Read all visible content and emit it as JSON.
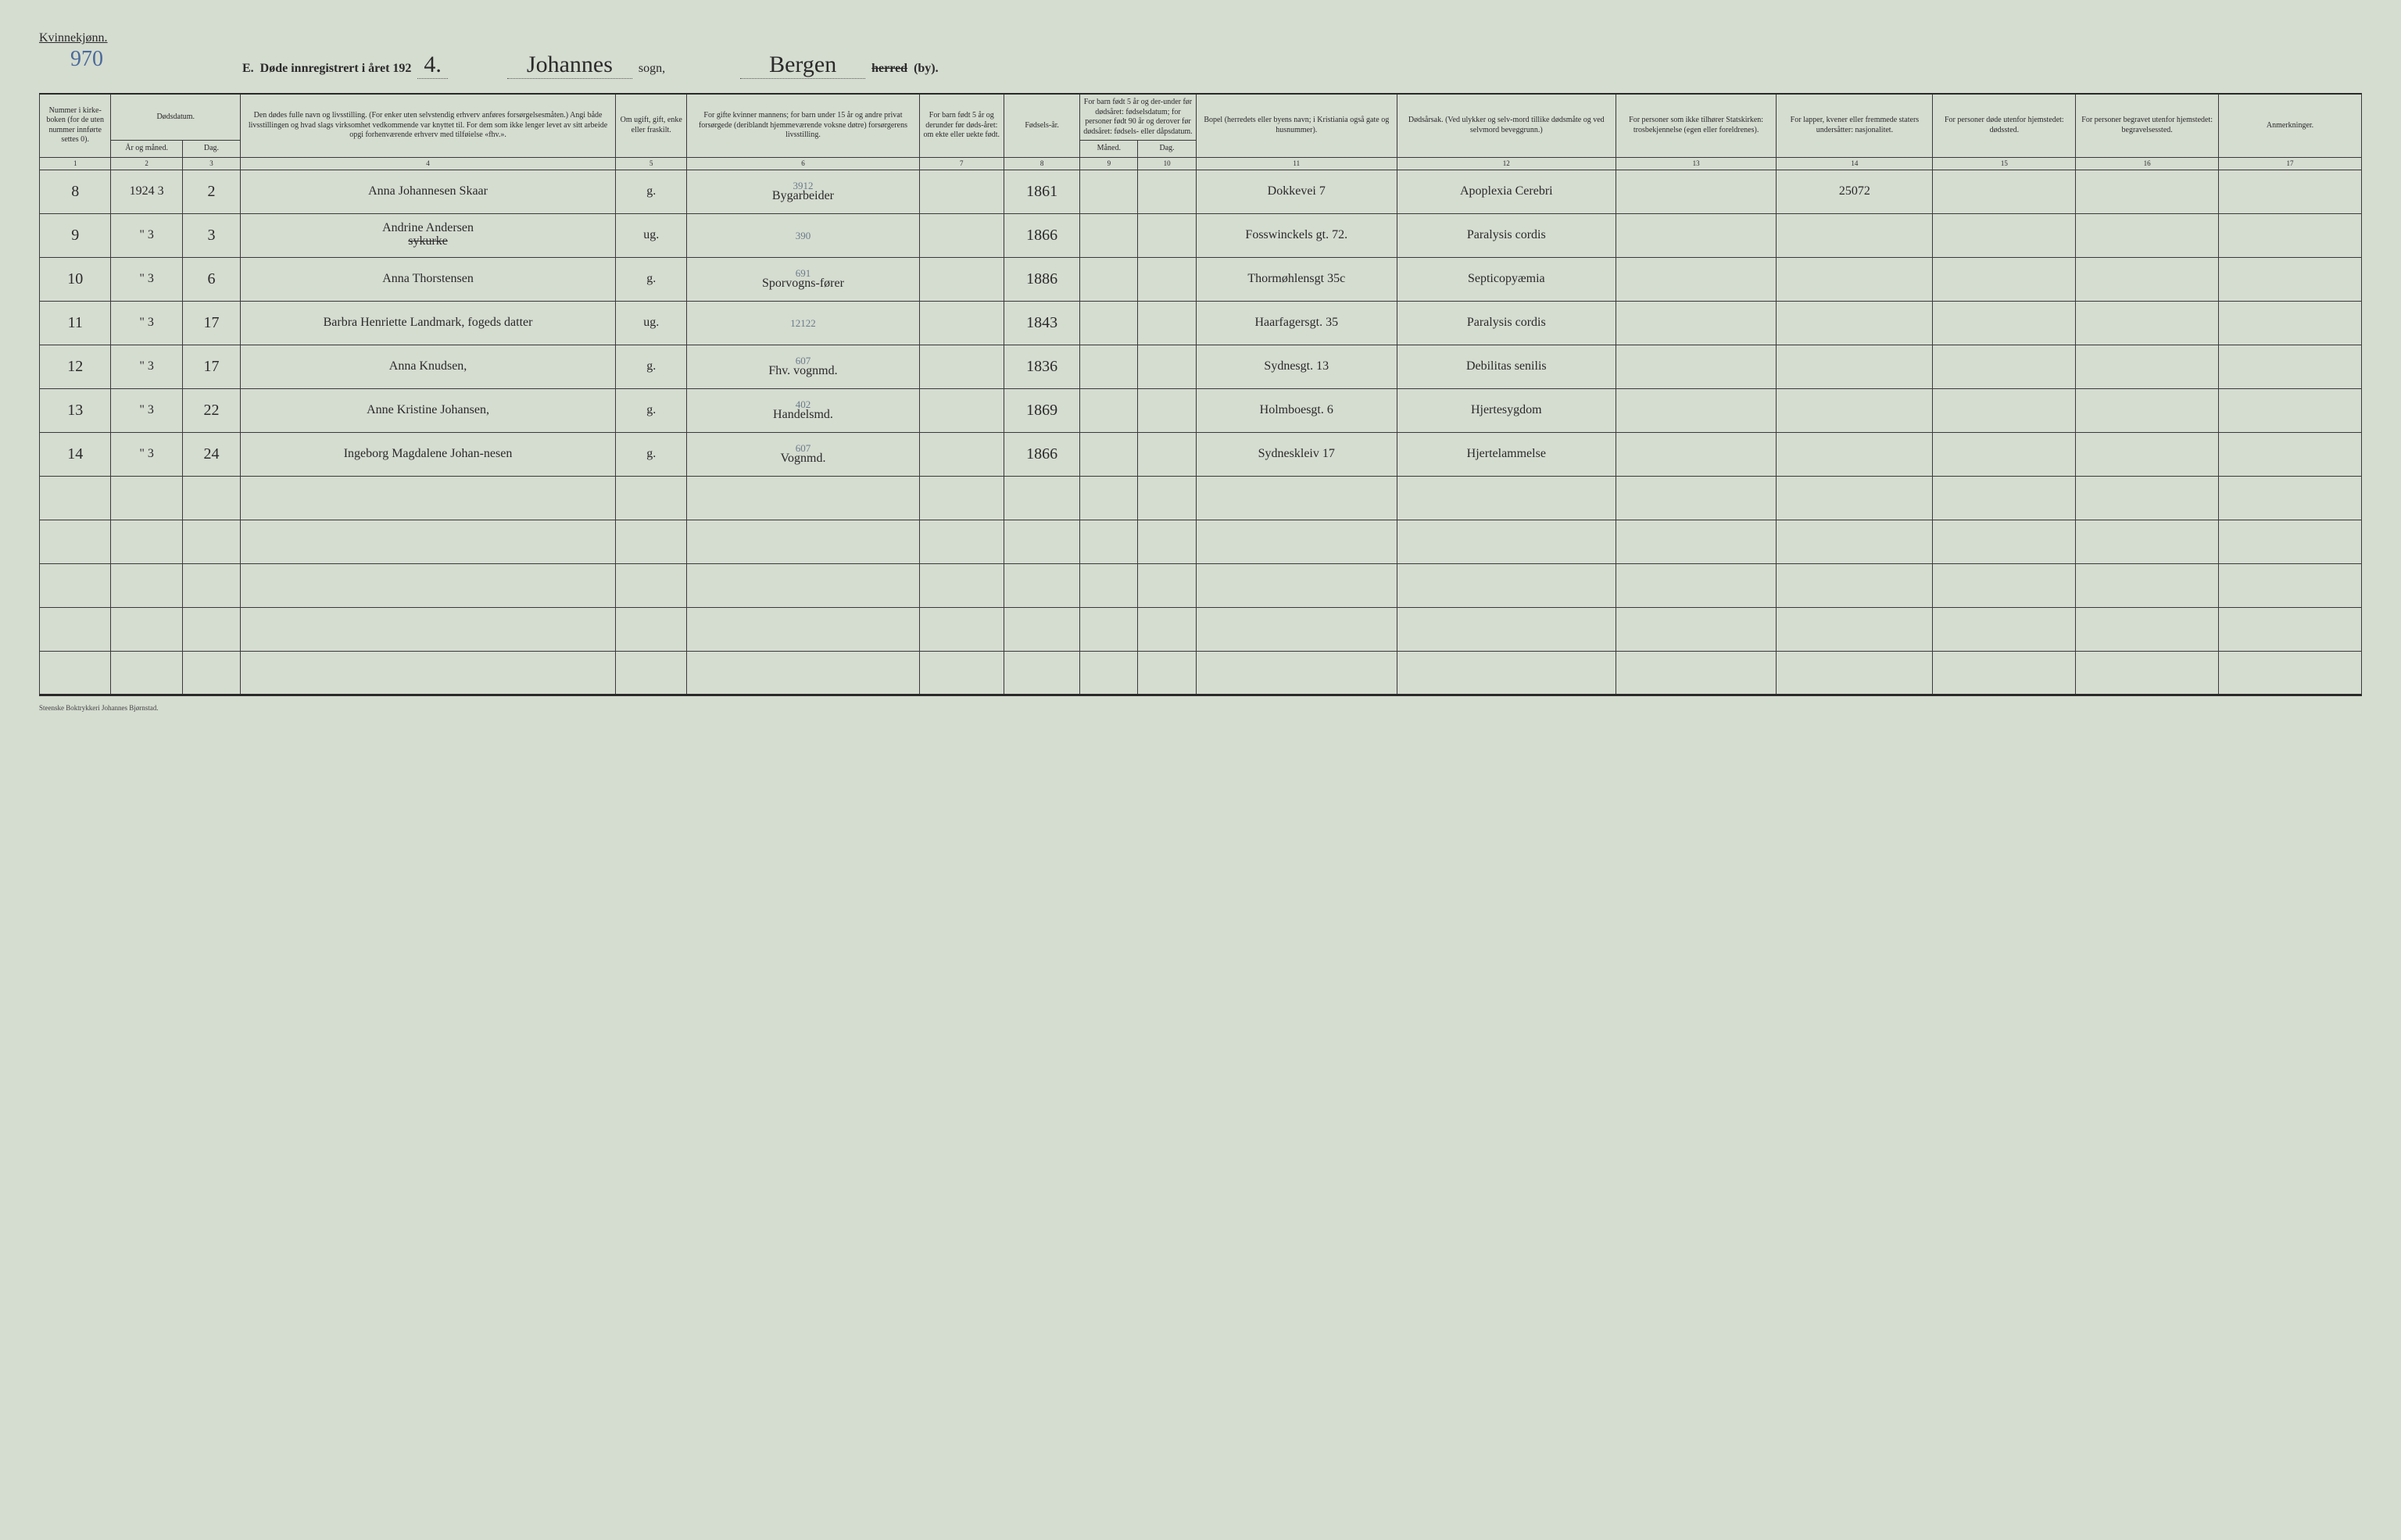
{
  "corner_label": "Kvinnekjønn.",
  "page_number": "970",
  "header": {
    "label_e": "E.",
    "label_main": "Døde innregistrert i året 192",
    "year_suffix": "4.",
    "parish_hand": "Johannes",
    "sogn": "sogn,",
    "city_hand": "Bergen",
    "herred_strike": "herred",
    "by": "(by)."
  },
  "col_headers": {
    "c1": "Nummer i kirke-boken (for de uten nummer innførte settes 0).",
    "c2_top": "Dødsdatum.",
    "c2a": "År og måned.",
    "c2b": "Dag.",
    "c4": "Den dødes fulle navn og livsstilling. (For enker uten selvstendig erhverv anføres forsørgelsesmåten.) Angi både livsstillingen og hvad slags virksomhet vedkommende var knyttet til. For dem som ikke lenger levet av sitt arbeide opgi forhenværende erhverv med tilføielse «fhv.».",
    "c5": "Om ugift, gift, enke eller fraskilt.",
    "c6": "For gifte kvinner mannens; for barn under 15 år og andre privat forsørgede (deriblandt hjemmeværende voksne døtre) forsørgerens livsstilling.",
    "c7": "For barn født 5 år og derunder før døds-året: om ekte eller uekte født.",
    "c8": "Fødsels-år.",
    "c9_top": "For barn født 5 år og der-under før dødsåret: fødselsdatum; for personer født 90 år og derover før dødsåret: fødsels- eller dåpsdatum.",
    "c9a": "Måned.",
    "c9b": "Dag.",
    "c11": "Bopel (herredets eller byens navn; i Kristiania også gate og husnummer).",
    "c12": "Dødsårsak. (Ved ulykker og selv-mord tillike dødsmåte og ved selvmord beveggrunn.)",
    "c13": "For personer som ikke tilhører Statskirken: trosbekjennelse (egen eller foreldrenes).",
    "c14": "For lapper, kvener eller fremmede staters undersåtter: nasjonalitet.",
    "c15": "For personer døde utenfor hjemstedet: dødssted.",
    "c16": "For personer begravet utenfor hjemstedet: begravelsessted.",
    "c17": "Anmerkninger."
  },
  "colnums": [
    "1",
    "2",
    "3",
    "4",
    "5",
    "6",
    "7",
    "8",
    "9",
    "10",
    "11",
    "12",
    "13",
    "14",
    "15",
    "16",
    "17"
  ],
  "rows": [
    {
      "n": "8",
      "ym": "1924 3",
      "day": "2",
      "name": "Anna Johannesen Skaar",
      "status": "g.",
      "occ_sup": "3912",
      "occ": "Bygarbeider",
      "col7": "",
      "birth": "1861",
      "m": "",
      "d": "",
      "bopel": "Dokkevei 7",
      "cause": "Apoplexia Cerebri",
      "c13": "",
      "c14": "25072",
      "c15": "",
      "c16": "",
      "c17": ""
    },
    {
      "n": "9",
      "ym": "\" 3",
      "day": "3",
      "name": "Andrine Andersen",
      "name_strike": "sykurke",
      "status": "ug.",
      "occ_sup": "390",
      "occ": "",
      "col7": "",
      "birth": "1866",
      "m": "",
      "d": "",
      "bopel": "Fosswinckels gt. 72.",
      "cause": "Paralysis cordis",
      "c13": "",
      "c14": "",
      "c15": "",
      "c16": "",
      "c17": ""
    },
    {
      "n": "10",
      "ym": "\" 3",
      "day": "6",
      "name": "Anna Thorstensen",
      "status": "g.",
      "occ_sup": "691",
      "occ": "Sporvogns-fører",
      "col7": "",
      "birth": "1886",
      "m": "",
      "d": "",
      "bopel": "Thormøhlensgt 35c",
      "cause": "Septicopyæmia",
      "c13": "",
      "c14": "",
      "c15": "",
      "c16": "",
      "c17": ""
    },
    {
      "n": "11",
      "ym": "\" 3",
      "day": "17",
      "name": "Barbra Henriette Landmark, fogeds datter",
      "status": "ug.",
      "occ_sup": "12122",
      "occ": "",
      "col7": "",
      "birth": "1843",
      "m": "",
      "d": "",
      "bopel": "Haarfagersgt. 35",
      "cause": "Paralysis cordis",
      "c13": "",
      "c14": "",
      "c15": "",
      "c16": "",
      "c17": ""
    },
    {
      "n": "12",
      "ym": "\" 3",
      "day": "17",
      "name": "Anna Knudsen,",
      "status": "g.",
      "occ_sup": "607",
      "occ": "Fhv. vognmd.",
      "col7": "",
      "birth": "1836",
      "m": "",
      "d": "",
      "bopel": "Sydnesgt. 13",
      "cause": "Debilitas senilis",
      "c13": "",
      "c14": "",
      "c15": "",
      "c16": "",
      "c17": ""
    },
    {
      "n": "13",
      "ym": "\" 3",
      "day": "22",
      "name": "Anne Kristine Johansen,",
      "status": "g.",
      "occ_sup": "402",
      "occ": "Handelsmd.",
      "col7": "",
      "birth": "1869",
      "m": "",
      "d": "",
      "bopel": "Holmboesgt. 6",
      "cause": "Hjertesygdom",
      "c13": "",
      "c14": "",
      "c15": "",
      "c16": "",
      "c17": ""
    },
    {
      "n": "14",
      "ym": "\" 3",
      "day": "24",
      "name": "Ingeborg Magdalene Johan-nesen",
      "status": "g.",
      "occ_sup": "607",
      "occ": "Vognmd.",
      "col7": "",
      "birth": "1866",
      "m": "",
      "d": "",
      "bopel": "Sydneskleiv 17",
      "cause": "Hjertelammelse",
      "c13": "",
      "c14": "",
      "c15": "",
      "c16": "",
      "c17": ""
    }
  ],
  "empty_rows": 5,
  "footer": "Steenske Boktrykkeri Johannes Bjørnstad.",
  "colwidths_pct": [
    3.2,
    3.2,
    2.6,
    16.8,
    3.2,
    10.4,
    3.8,
    3.4,
    2.6,
    2.6,
    9.0,
    9.8,
    7.2,
    7.0,
    6.4,
    6.4,
    6.4
  ],
  "colors": {
    "bg": "#d5dcd0",
    "ink": "#2a2a2a",
    "blue_ink": "#4a6a9a",
    "pencil": "#6a7a8a"
  }
}
